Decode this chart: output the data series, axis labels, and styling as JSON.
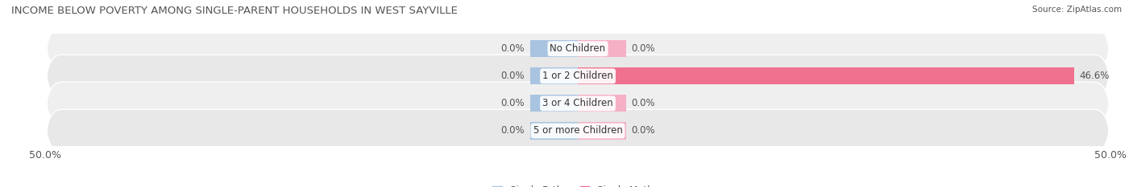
{
  "title": "INCOME BELOW POVERTY AMONG SINGLE-PARENT HOUSEHOLDS IN WEST SAYVILLE",
  "source": "Source: ZipAtlas.com",
  "categories": [
    "No Children",
    "1 or 2 Children",
    "3 or 4 Children",
    "5 or more Children"
  ],
  "single_father": [
    0.0,
    0.0,
    0.0,
    0.0
  ],
  "single_mother": [
    0.0,
    46.6,
    0.0,
    0.0
  ],
  "father_color": "#a8c4e0",
  "mother_color": "#f07090",
  "mother_color_light": "#f5b0c5",
  "x_min": -50.0,
  "x_max": 50.0,
  "bar_height": 0.62,
  "stub_size": 4.5,
  "title_fontsize": 9.5,
  "label_fontsize": 8.5,
  "tick_fontsize": 9,
  "legend_fontsize": 8.5,
  "title_color": "#555555",
  "text_color": "#555555",
  "row_bg_even": "#f0f0f0",
  "row_bg_odd": "#e4e4e4",
  "row_bg_colors": [
    "#efefef",
    "#e8e8e8",
    "#efefef",
    "#e8e8e8"
  ]
}
